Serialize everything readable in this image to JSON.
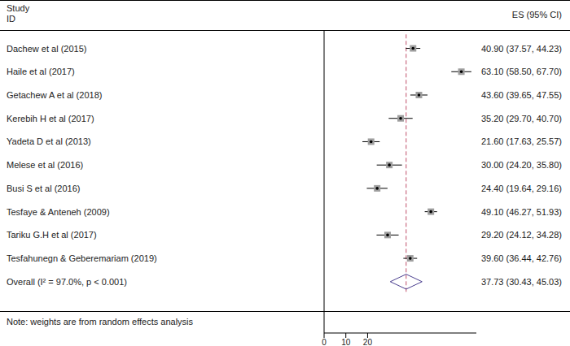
{
  "chart_data": {
    "type": "forest",
    "header": [
      "Study",
      "ID"
    ],
    "es_header": "ES (95% CI)",
    "categories": [
      "Dachew et al (2015)",
      "Haile et al (2017)",
      "Getachew A et al (2018)",
      "Kerebih H et al (2017)",
      "Yadeta D et al (2013)",
      "Melese et al (2016)",
      "Busi S et al (2016)",
      "Tesfaye & Anteneh (2009)",
      "Tariku G.H et al (2017)",
      "Tesfahunegn & Geberemariam (2019)",
      "Overall (I² = 97.0%, p < 0.001)"
    ],
    "values": [
      40.9,
      63.1,
      43.6,
      35.2,
      21.6,
      30.0,
      24.4,
      49.1,
      29.2,
      39.6,
      37.73
    ],
    "ci_low": [
      37.57,
      58.5,
      39.65,
      29.7,
      17.63,
      24.2,
      19.64,
      46.27,
      24.12,
      36.44,
      30.43
    ],
    "ci_high": [
      44.23,
      67.7,
      47.55,
      40.7,
      25.57,
      35.8,
      29.16,
      51.93,
      34.28,
      42.76,
      45.03
    ],
    "value_labels": [
      "40.90 (37.57, 44.23)",
      "63.10 (58.50, 67.70)",
      "43.60 (39.65, 47.55)",
      "35.20 (29.70, 40.70)",
      "21.60 (17.63, 25.57)",
      "30.00 (24.20, 35.80)",
      "24.40 (19.64, 29.16)",
      "49.10 (46.27, 51.93)",
      "29.20 (24.12, 34.28)",
      "39.60 (36.44, 42.76)",
      "37.73 (30.43, 45.03)"
    ],
    "xlim": [
      0,
      70
    ],
    "xticks": [
      0,
      10,
      20
    ],
    "note": "Note: weights are from random effects analysis",
    "marker": "square",
    "color": "#9e9e9e"
  }
}
